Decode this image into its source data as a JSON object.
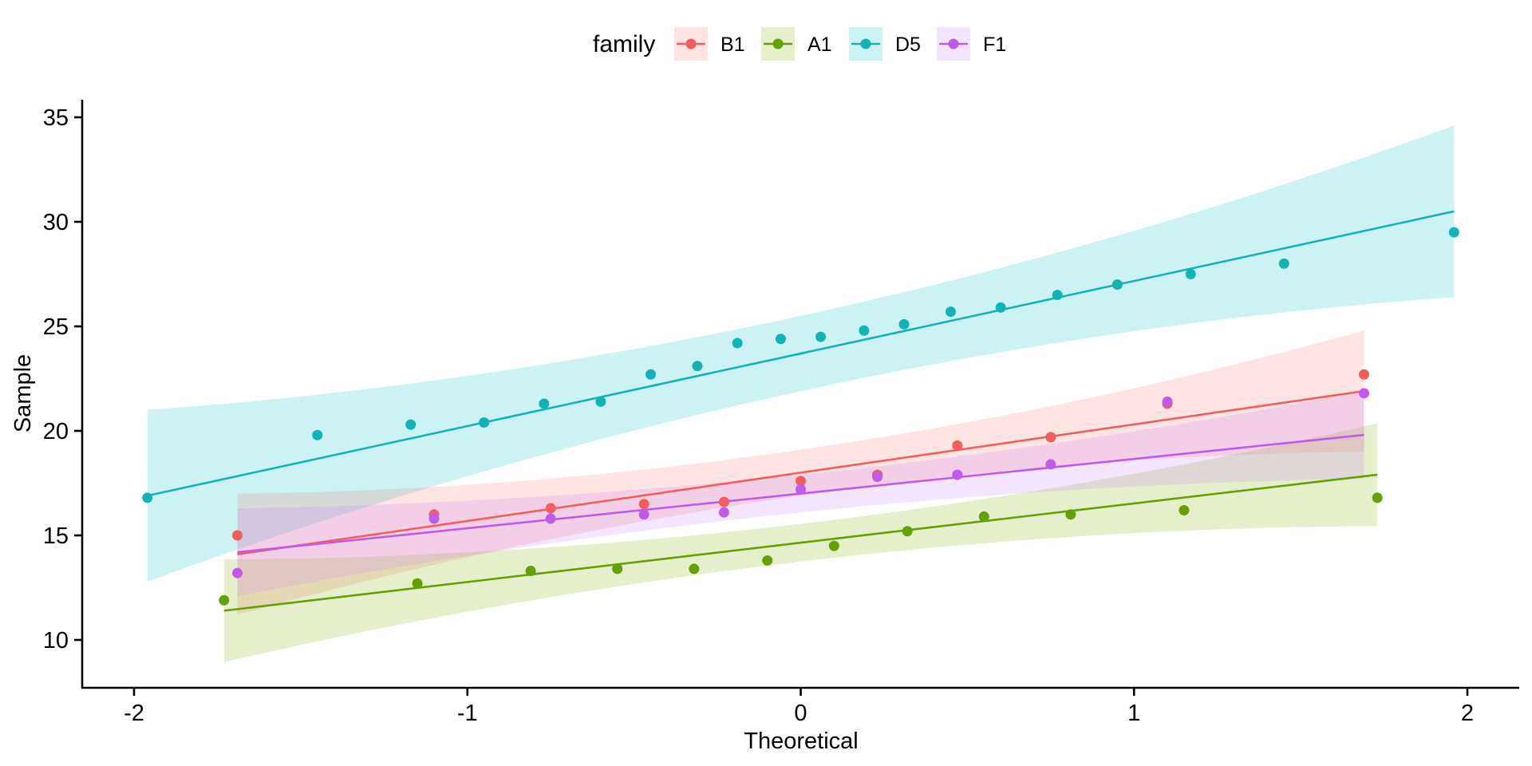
{
  "chart_data": {
    "type": "scatter",
    "subtype": "qq-plot",
    "title": "",
    "xlabel": "Theoretical",
    "ylabel": "Sample",
    "xlim": [
      -2.2,
      2.15
    ],
    "ylim": [
      7.7,
      35.85
    ],
    "x_ticks": [
      -2,
      -1,
      0,
      1,
      2
    ],
    "x_tick_labels": [
      "-2",
      "-1",
      "0",
      "1",
      "2"
    ],
    "y_ticks": [
      10,
      15,
      20,
      25,
      30,
      35
    ],
    "y_tick_labels": [
      "10",
      "15",
      "20",
      "25",
      "30",
      "35"
    ],
    "grid": false,
    "legend": {
      "title": "family",
      "position": "top",
      "entries": [
        "B1",
        "A1",
        "D5",
        "F1"
      ]
    },
    "series": [
      {
        "name": "B1",
        "color": "#F25D5D",
        "fill": "#F8766D",
        "x": [
          -1.69,
          -1.1,
          -0.75,
          -0.47,
          -0.23,
          0.0,
          0.23,
          0.47,
          0.75,
          1.1,
          1.69
        ],
        "y": [
          15.0,
          16.0,
          16.3,
          16.5,
          16.6,
          17.6,
          17.9,
          19.3,
          19.7,
          21.3,
          22.7
        ],
        "fit": {
          "intercept": 18.0,
          "slope": 2.31
        },
        "band_halfwidth": {
          "center": 1.1,
          "curvature": 0.63
        }
      },
      {
        "name": "A1",
        "color": "#66A000",
        "fill": "#7CAE00",
        "x": [
          -1.73,
          -1.15,
          -0.81,
          -0.55,
          -0.32,
          -0.1,
          0.1,
          0.32,
          0.55,
          0.81,
          1.15,
          1.73
        ],
        "y": [
          11.9,
          12.7,
          13.3,
          13.4,
          13.4,
          13.8,
          14.5,
          15.2,
          15.9,
          16.0,
          16.2,
          16.8
        ],
        "fit": {
          "intercept": 14.65,
          "slope": 1.88
        },
        "band_halfwidth": {
          "center": 0.9,
          "curvature": 0.52
        }
      },
      {
        "name": "D5",
        "color": "#14B3B3",
        "fill": "#00BFC4",
        "x": [
          -1.96,
          -1.45,
          -1.17,
          -0.95,
          -0.77,
          -0.6,
          -0.45,
          -0.31,
          -0.19,
          -0.06,
          0.06,
          0.19,
          0.31,
          0.45,
          0.6,
          0.77,
          0.95,
          1.17,
          1.45,
          1.96
        ],
        "y": [
          16.8,
          19.8,
          20.3,
          20.4,
          21.3,
          21.4,
          22.7,
          23.1,
          24.2,
          24.4,
          24.5,
          24.8,
          25.1,
          25.7,
          25.9,
          26.5,
          27.0,
          27.5,
          28.0,
          29.5
        ],
        "fit": {
          "intercept": 23.7,
          "slope": 3.47
        },
        "band_halfwidth": {
          "center": 1.8,
          "curvature": 0.6
        }
      },
      {
        "name": "F1",
        "color": "#BF5AEB",
        "fill": "#C77CFF",
        "x": [
          -1.69,
          -1.1,
          -0.75,
          -0.47,
          -0.23,
          0.0,
          0.23,
          0.47,
          0.75,
          1.1,
          1.69
        ],
        "y": [
          13.2,
          15.8,
          15.8,
          16.0,
          16.1,
          17.2,
          17.8,
          17.9,
          18.4,
          21.4,
          21.8
        ],
        "fit": {
          "intercept": 17.0,
          "slope": 1.66
        },
        "band_halfwidth": {
          "center": 0.9,
          "curvature": 0.42
        }
      }
    ]
  }
}
